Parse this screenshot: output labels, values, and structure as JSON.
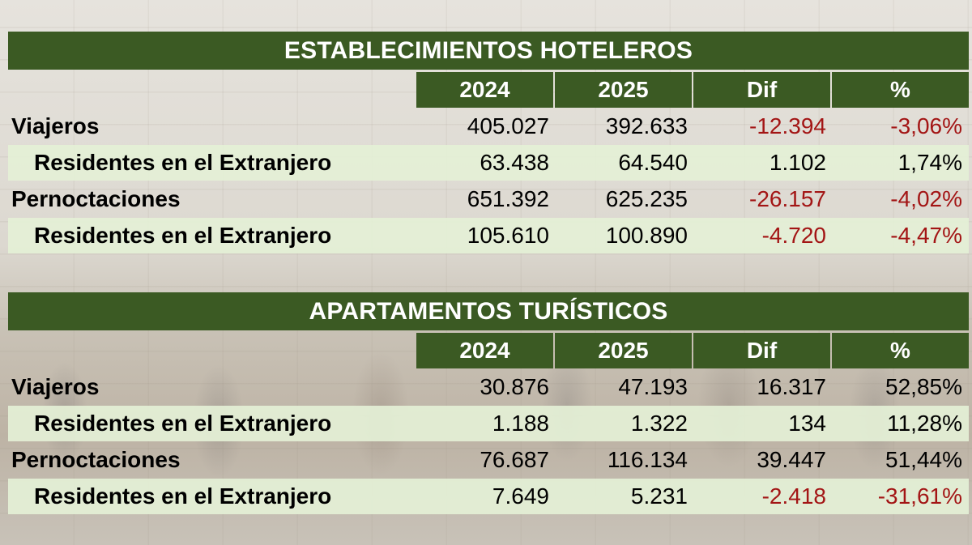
{
  "colors": {
    "header_bg": "#3b5a23",
    "header_text": "#ffffff",
    "negative": "#a31515",
    "row_shade": "#e4f0d6"
  },
  "column_headers": [
    "2024",
    "2025",
    "Dif",
    "%"
  ],
  "hoteles": {
    "title": "ESTABLECIMIENTOS HOTELEROS",
    "rows": [
      {
        "label": "Viajeros",
        "indent": false,
        "shade": false,
        "v2024": "405.027",
        "v2025": "392.633",
        "dif": "-12.394",
        "pct": "-3,06%",
        "dif_neg": true,
        "pct_neg": true
      },
      {
        "label": "Residentes en el Extranjero",
        "indent": true,
        "shade": true,
        "v2024": "63.438",
        "v2025": "64.540",
        "dif": "1.102",
        "pct": "1,74%",
        "dif_neg": false,
        "pct_neg": false
      },
      {
        "label": "Pernoctaciones",
        "indent": false,
        "shade": false,
        "v2024": "651.392",
        "v2025": "625.235",
        "dif": "-26.157",
        "pct": "-4,02%",
        "dif_neg": true,
        "pct_neg": true
      },
      {
        "label": "Residentes en el Extranjero",
        "indent": true,
        "shade": true,
        "v2024": "105.610",
        "v2025": "100.890",
        "dif": "-4.720",
        "pct": "-4,47%",
        "dif_neg": true,
        "pct_neg": true
      }
    ]
  },
  "apartamentos": {
    "title": "APARTAMENTOS TURÍSTICOS",
    "rows": [
      {
        "label": "Viajeros",
        "indent": false,
        "shade": false,
        "v2024": "30.876",
        "v2025": "47.193",
        "dif": "16.317",
        "pct": "52,85%",
        "dif_neg": false,
        "pct_neg": false
      },
      {
        "label": "Residentes en el Extranjero",
        "indent": true,
        "shade": true,
        "v2024": "1.188",
        "v2025": "1.322",
        "dif": "134",
        "pct": "11,28%",
        "dif_neg": false,
        "pct_neg": false
      },
      {
        "label": "Pernoctaciones",
        "indent": false,
        "shade": false,
        "v2024": "76.687",
        "v2025": "116.134",
        "dif": "39.447",
        "pct": "51,44%",
        "dif_neg": false,
        "pct_neg": false
      },
      {
        "label": "Residentes en el Extranjero",
        "indent": true,
        "shade": true,
        "v2024": "7.649",
        "v2025": "5.231",
        "dif": "-2.418",
        "pct": "-31,61%",
        "dif_neg": true,
        "pct_neg": true
      }
    ]
  }
}
